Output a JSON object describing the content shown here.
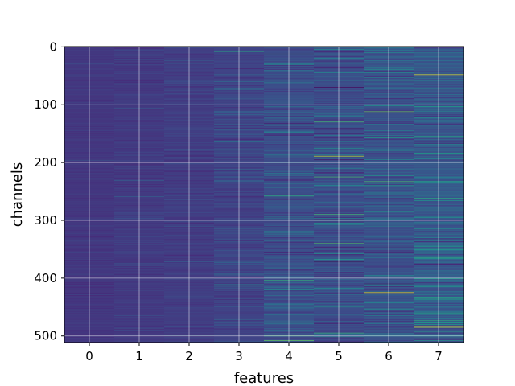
{
  "chart_data": {
    "type": "heatmap",
    "xlabel": "features",
    "ylabel": "channels",
    "x_categories": [
      "0",
      "1",
      "2",
      "3",
      "4",
      "5",
      "6",
      "7"
    ],
    "xlim": [
      -0.5,
      7.5
    ],
    "ylim": [
      511.5,
      -0.5
    ],
    "y_ticks": [
      0,
      100,
      200,
      300,
      400,
      500
    ],
    "n_rows": 512,
    "n_cols": 8,
    "grid": true,
    "colormap": "viridis",
    "column_base_levels": [
      0.16,
      0.17,
      0.18,
      0.2,
      0.24,
      0.23,
      0.25,
      0.27
    ],
    "column_spread": [
      0.05,
      0.06,
      0.07,
      0.1,
      0.16,
      0.17,
      0.17,
      0.18
    ],
    "notable_cells": [
      {
        "col": 3,
        "row": 8,
        "value": 0.6
      },
      {
        "col": 4,
        "row": 30,
        "value": 0.55
      },
      {
        "col": 4,
        "row": 133,
        "value": 0.08
      },
      {
        "col": 4,
        "row": 404,
        "value": 0.65
      },
      {
        "col": 4,
        "row": 500,
        "value": 0.7
      },
      {
        "col": 4,
        "row": 508,
        "value": 0.75
      },
      {
        "col": 5,
        "row": 70,
        "value": 0.02
      },
      {
        "col": 5,
        "row": 130,
        "value": 0.7
      },
      {
        "col": 5,
        "row": 189,
        "value": 0.9
      },
      {
        "col": 5,
        "row": 225,
        "value": 0.7
      },
      {
        "col": 5,
        "row": 290,
        "value": 0.7
      },
      {
        "col": 5,
        "row": 340,
        "value": 0.7
      },
      {
        "col": 5,
        "row": 372,
        "value": 0.02
      },
      {
        "col": 5,
        "row": 495,
        "value": 0.65
      },
      {
        "col": 6,
        "row": 112,
        "value": 0.75
      },
      {
        "col": 6,
        "row": 233,
        "value": 0.7
      },
      {
        "col": 6,
        "row": 410,
        "value": 0.05
      },
      {
        "col": 6,
        "row": 425,
        "value": 0.95
      },
      {
        "col": 7,
        "row": 48,
        "value": 0.95
      },
      {
        "col": 7,
        "row": 142,
        "value": 0.9
      },
      {
        "col": 7,
        "row": 262,
        "value": 0.6
      },
      {
        "col": 7,
        "row": 320,
        "value": 0.9
      },
      {
        "col": 7,
        "row": 365,
        "value": 0.6
      },
      {
        "col": 7,
        "row": 435,
        "value": 0.6
      },
      {
        "col": 7,
        "row": 485,
        "value": 0.95
      }
    ],
    "colors": {
      "viridis_stops": [
        "#440154",
        "#482878",
        "#3e4a89",
        "#31688e",
        "#26828e",
        "#1f9e89",
        "#35b779",
        "#6ece58",
        "#b5de2b",
        "#fde725"
      ],
      "grid": "#ffffff",
      "frame": "#000000"
    }
  }
}
